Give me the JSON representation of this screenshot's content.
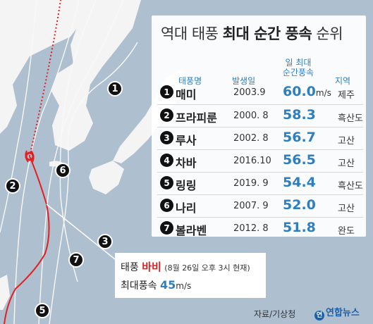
{
  "title": {
    "light_pre": "역대 태풍",
    "bold": "최대 순간 풍속",
    "light_post": "순위"
  },
  "headers": {
    "name": "태풍명",
    "year": "발생일",
    "speed_line1": "일 최대",
    "speed_line2": "순간풍속",
    "region": "지역"
  },
  "rows": [
    {
      "rank": "1",
      "name": "매미",
      "date": "2003.9",
      "speed": "60.0",
      "unit": "m/s",
      "region": "제주"
    },
    {
      "rank": "2",
      "name": "프라피룬",
      "date": "2000. 8",
      "speed": "58.3",
      "unit": "",
      "region": "흑산도"
    },
    {
      "rank": "3",
      "name": "루사",
      "date": "2002. 8",
      "speed": "56.7",
      "unit": "",
      "region": "고산"
    },
    {
      "rank": "4",
      "name": "차바",
      "date": "2016.10",
      "speed": "56.5",
      "unit": "",
      "region": "고산"
    },
    {
      "rank": "5",
      "name": "링링",
      "date": "2019. 9",
      "speed": "54.4",
      "unit": "",
      "region": "흑산도"
    },
    {
      "rank": "6",
      "name": "나리",
      "date": "2007. 9",
      "speed": "52.0",
      "unit": "",
      "region": "고산"
    },
    {
      "rank": "7",
      "name": "볼라벤",
      "date": "2012. 8",
      "speed": "51.8",
      "unit": "",
      "region": "완도"
    }
  ],
  "map_markers": [
    "1",
    "2",
    "3",
    "5",
    "6",
    "7"
  ],
  "info": {
    "prefix": "태풍",
    "typhoon": "바비",
    "time": "(8월 26일 오후 3시 현재)",
    "label": "최대풍속",
    "value": "45",
    "unit": "m/s"
  },
  "source": "자료/기상청",
  "logo_text": "연합뉴스",
  "logo_mark": "연",
  "colors": {
    "track_red": "#e31f1f",
    "accent_blue": "#2f7fc0",
    "sea": "#aebfcf",
    "land": "#f4f4f4"
  }
}
